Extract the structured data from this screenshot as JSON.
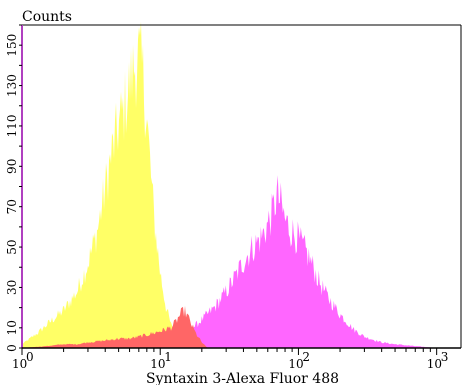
{
  "chart_data": {
    "type": "area",
    "title": "",
    "xlabel": "Syntaxin 3-Alexa Fluor 488",
    "ylabel": "Counts",
    "x_scale": "log",
    "xlim": [
      1,
      1500
    ],
    "ylim": [
      0,
      160
    ],
    "grid": false,
    "y_ticks": [
      0,
      10,
      30,
      50,
      70,
      90,
      110,
      130,
      150
    ],
    "y_tick_labels": [
      "0",
      "10",
      "30",
      "50",
      "70",
      "90",
      "110",
      "130",
      "150"
    ],
    "x_ticks": [
      {
        "value": 1,
        "base": "10",
        "exp": "0"
      },
      {
        "value": 10,
        "base": "10",
        "exp": "1"
      },
      {
        "value": 100,
        "base": "10",
        "exp": "2"
      },
      {
        "value": 1000,
        "base": "10",
        "exp": "3"
      }
    ],
    "series": [
      {
        "color": "#ffff66",
        "x": [
          1,
          1.3,
          1.6,
          2.0,
          2.5,
          3.0,
          3.5,
          4.0,
          4.5,
          5.0,
          5.5,
          6.0,
          6.5,
          7.0,
          7.5,
          8.0,
          9.0,
          10,
          11,
          12,
          13,
          14,
          15,
          16,
          18,
          20,
          25
        ],
        "y": [
          2,
          8,
          14,
          20,
          30,
          45,
          62,
          85,
          105,
          118,
          128,
          140,
          150,
          155,
          145,
          122,
          70,
          40,
          22,
          12,
          6,
          3,
          2,
          1,
          0,
          0,
          0
        ]
      },
      {
        "color": "#ff66ff",
        "x": [
          8,
          10,
          12,
          15,
          18,
          20,
          25,
          30,
          35,
          40,
          45,
          50,
          55,
          60,
          65,
          70,
          75,
          80,
          90,
          100,
          120,
          140,
          160,
          200,
          250,
          300,
          400,
          500,
          700,
          1000,
          1300
        ],
        "y": [
          0,
          2,
          4,
          8,
          12,
          15,
          22,
          30,
          38,
          46,
          52,
          56,
          60,
          66,
          72,
          82,
          76,
          68,
          62,
          58,
          48,
          36,
          28,
          18,
          10,
          6,
          3,
          2,
          1,
          0,
          0
        ]
      },
      {
        "color": "#ff6666",
        "x": [
          1,
          1.5,
          2.0,
          2.5,
          3.0,
          4.0,
          5.0,
          6.0,
          7.0,
          8.0,
          9.0,
          10,
          11,
          12,
          13,
          14,
          15,
          16,
          18,
          20,
          22
        ],
        "y": [
          0,
          1,
          2,
          2,
          3,
          4,
          5,
          5,
          6,
          7,
          8,
          9,
          10,
          11,
          14,
          18,
          20,
          16,
          8,
          3,
          0
        ]
      }
    ]
  }
}
